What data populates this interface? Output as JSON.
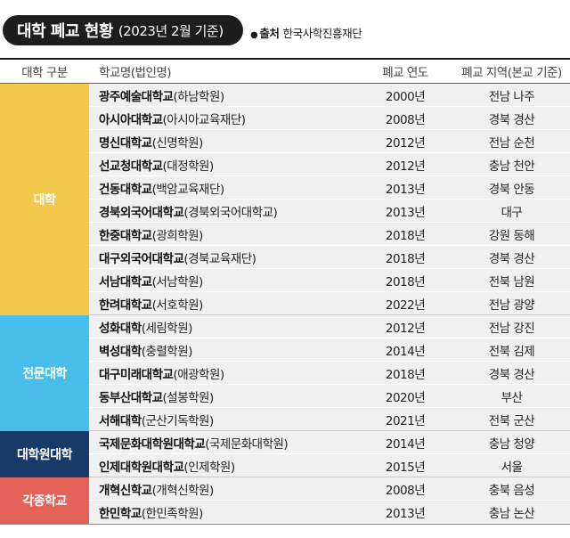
{
  "title": {
    "main": "대학 폐교 현황",
    "sub": "(2023년 2월 기준)"
  },
  "source": {
    "bullet": "●",
    "label": "출처",
    "text": "한국사학진흥재단"
  },
  "headers": {
    "category": "대학 구분",
    "school": "학교명(법인명)",
    "year": "폐교 연도",
    "region": "폐교 지역(본교 기준)"
  },
  "categories": [
    {
      "label": "대학",
      "color": "#f2c84b"
    },
    {
      "label": "전문대학",
      "color": "#48bde9"
    },
    {
      "label": "대학원대학",
      "color": "#173a68"
    },
    {
      "label": "각종학교",
      "color": "#e3635a"
    }
  ],
  "rows": [
    {
      "name": "광주예술대학교",
      "corp": "(하남학원)",
      "year": "2000년",
      "region": "전남 나주"
    },
    {
      "name": "아시아대학교",
      "corp": "(아시아교육재단)",
      "year": "2008년",
      "region": "경북 경산"
    },
    {
      "name": "명신대학교",
      "corp": "(신명학원)",
      "year": "2012년",
      "region": "전남 순천"
    },
    {
      "name": "선교청대학교",
      "corp": "(대정학원)",
      "year": "2012년",
      "region": "충남 천안"
    },
    {
      "name": "건동대학교",
      "corp": "(백암교육재단)",
      "year": "2013년",
      "region": "경북 안동"
    },
    {
      "name": "경북외국어대학교",
      "corp": "(경북외국어대학교)",
      "year": "2013년",
      "region": "대구"
    },
    {
      "name": "한중대학교",
      "corp": "(광희학원)",
      "year": "2018년",
      "region": "강원 동해"
    },
    {
      "name": "대구외국어대학교",
      "corp": "(경북교육재단)",
      "year": "2018년",
      "region": "경북 경산"
    },
    {
      "name": "서남대학교",
      "corp": "(서남학원)",
      "year": "2018년",
      "region": "전북 남원"
    },
    {
      "name": "한려대학교",
      "corp": "(서호학원)",
      "year": "2022년",
      "region": "전남 광양"
    },
    {
      "name": "성화대학",
      "corp": "(세림학원)",
      "year": "2012년",
      "region": "전남 강진"
    },
    {
      "name": "벽성대학",
      "corp": "(충렬학원)",
      "year": "2014년",
      "region": "전북 김제"
    },
    {
      "name": "대구미래대학교",
      "corp": "(애광학원)",
      "year": "2018년",
      "region": "경북 경산"
    },
    {
      "name": "동부산대학교",
      "corp": "(설봉학원)",
      "year": "2020년",
      "region": "부산"
    },
    {
      "name": "서해대학",
      "corp": "(군산기독학원)",
      "year": "2021년",
      "region": "전북 군산"
    },
    {
      "name": "국제문화대학원대학교",
      "corp": "(국제문화대학원)",
      "year": "2014년",
      "region": "충남 청양"
    },
    {
      "name": "인제대학원대학교",
      "corp": "(인제학원)",
      "year": "2015년",
      "region": "서울"
    },
    {
      "name": "개혁신학교",
      "corp": "(개혁신학원)",
      "year": "2008년",
      "region": "충북 음성"
    },
    {
      "name": "한민학교",
      "corp": "(한민족학원)",
      "year": "2013년",
      "region": "충남 논산"
    }
  ]
}
